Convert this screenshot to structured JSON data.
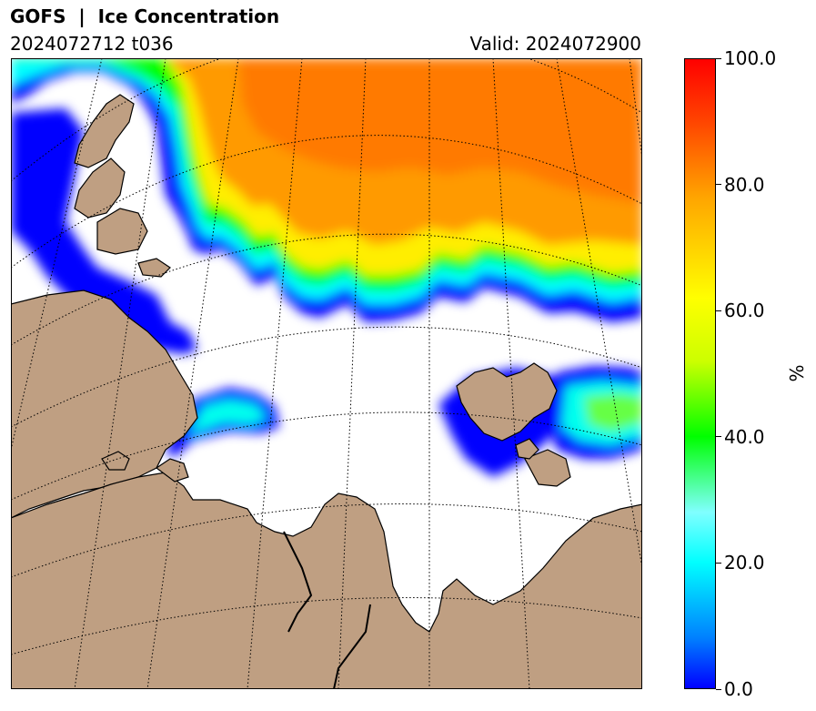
{
  "header": {
    "title": "GOFS  |  Ice Concentration",
    "run": "2024072712 t036",
    "valid": "Valid: 2024072900"
  },
  "colorbar": {
    "unit": "%",
    "min": 0,
    "max": 100,
    "ticks": [
      {
        "value": 0,
        "label": "0.0"
      },
      {
        "value": 20,
        "label": "20.0"
      },
      {
        "value": 40,
        "label": "40.0"
      },
      {
        "value": 60,
        "label": "60.0"
      },
      {
        "value": 80,
        "label": "80.0"
      },
      {
        "value": 100,
        "label": "100.0"
      }
    ],
    "colors": [
      "#0000ff",
      "#0080ff",
      "#00ffff",
      "#80ffff",
      "#00ff00",
      "#ccff00",
      "#ffff00",
      "#ffa500",
      "#ff4500",
      "#ff0000"
    ]
  },
  "map": {
    "land_color": "#bf9f82",
    "ocean_color": "#ffffff",
    "graticule": "dotted"
  }
}
